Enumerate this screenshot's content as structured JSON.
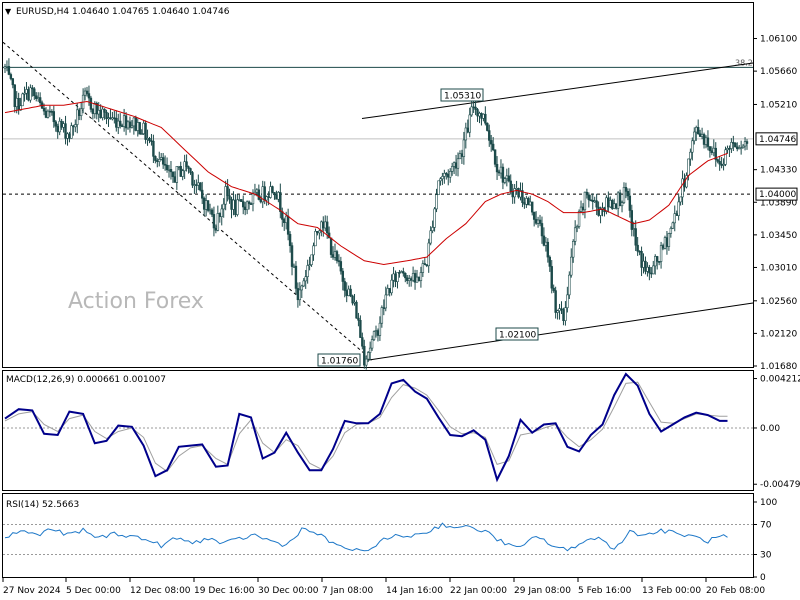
{
  "header": {
    "arrow": "▼",
    "title": "EURUSD,H4  1.04640 1.04765 1.04640 1.04746"
  },
  "watermark": "Action Forex",
  "colors": {
    "candle": "#1c4a4a",
    "ma": "#cc0000",
    "macd": "#00008b",
    "signal": "#a0a0a0",
    "rsi": "#1e78c8",
    "grid_dash": "#9a9a9a"
  },
  "chart_data": [
    {
      "type": "candlestick",
      "symbol": "EURUSD",
      "timeframe": "H4",
      "ylim": [
        1.0168,
        1.0635
      ],
      "y_ticks": [
        "1.06100",
        "1.05660",
        "1.05210",
        "1.04330",
        "1.03890",
        "1.03450",
        "1.03010",
        "1.02560",
        "1.02120",
        "1.01680"
      ],
      "last_price": "1.04746",
      "level_tag": "1.04000",
      "fib_label": "38.2",
      "fib_level": 1.0571,
      "annotations": [
        {
          "label": "1.05310",
          "value": 1.0531
        },
        {
          "label": "1.02100",
          "value": 1.021
        },
        {
          "label": "1.01760",
          "value": 1.0176
        }
      ],
      "x_ticks": [
        "27 Nov 2024",
        "5 Dec 00:00",
        "12 Dec 08:00",
        "19 Dec 16:00",
        "30 Dec 00:00",
        "7 Jan 08:00",
        "14 Jan 16:00",
        "22 Jan 00:00",
        "29 Jan 08:00",
        "5 Feb 16:00",
        "13 Feb 00:00",
        "20 Feb 08:00"
      ],
      "close_path": [
        [
          0,
          1.057
        ],
        [
          6,
          1.052
        ],
        [
          13,
          1.054
        ],
        [
          20,
          1.051
        ],
        [
          25,
          1.05
        ],
        [
          33,
          1.048
        ],
        [
          41,
          1.053
        ],
        [
          48,
          1.051
        ],
        [
          56,
          1.05
        ],
        [
          62,
          1.05
        ],
        [
          70,
          1.049
        ],
        [
          78,
          1.045
        ],
        [
          85,
          1.042
        ],
        [
          93,
          1.044
        ],
        [
          100,
          1.04
        ],
        [
          108,
          1.036
        ],
        [
          113,
          1.04
        ],
        [
          118,
          1.038
        ],
        [
          125,
          1.039
        ],
        [
          132,
          1.04
        ],
        [
          138,
          1.041
        ],
        [
          144,
          1.036
        ],
        [
          150,
          1.026
        ],
        [
          156,
          1.031
        ],
        [
          162,
          1.037
        ],
        [
          168,
          1.032
        ],
        [
          174,
          1.028
        ],
        [
          180,
          1.024
        ],
        [
          184,
          1.018
        ],
        [
          190,
          1.021
        ],
        [
          196,
          1.027
        ],
        [
          203,
          1.03
        ],
        [
          210,
          1.028
        ],
        [
          216,
          1.031
        ],
        [
          222,
          1.042
        ],
        [
          228,
          1.043
        ],
        [
          234,
          1.046
        ],
        [
          240,
          1.052
        ],
        [
          246,
          1.05
        ],
        [
          252,
          1.044
        ],
        [
          258,
          1.041
        ],
        [
          264,
          1.04
        ],
        [
          270,
          1.038
        ],
        [
          276,
          1.034
        ],
        [
          282,
          1.025
        ],
        [
          286,
          1.023
        ],
        [
          292,
          1.035
        ],
        [
          298,
          1.04
        ],
        [
          304,
          1.038
        ],
        [
          312,
          1.039
        ],
        [
          318,
          1.04
        ],
        [
          324,
          1.032
        ],
        [
          330,
          1.029
        ],
        [
          336,
          1.032
        ],
        [
          342,
          1.036
        ],
        [
          348,
          1.042
        ],
        [
          354,
          1.049
        ],
        [
          360,
          1.047
        ],
        [
          366,
          1.044
        ],
        [
          372,
          1.047
        ],
        [
          380,
          1.047
        ]
      ],
      "ma_path": [
        [
          0,
          1.051
        ],
        [
          10,
          1.0515
        ],
        [
          20,
          1.052
        ],
        [
          30,
          1.052
        ],
        [
          42,
          1.0525
        ],
        [
          54,
          1.0515
        ],
        [
          66,
          1.0505
        ],
        [
          80,
          1.049
        ],
        [
          92,
          1.046
        ],
        [
          104,
          1.043
        ],
        [
          116,
          1.041
        ],
        [
          128,
          1.04
        ],
        [
          140,
          1.038
        ],
        [
          150,
          1.036
        ],
        [
          160,
          1.0355
        ],
        [
          172,
          1.033
        ],
        [
          184,
          1.031
        ],
        [
          194,
          1.0305
        ],
        [
          206,
          1.031
        ],
        [
          216,
          1.0315
        ],
        [
          226,
          1.034
        ],
        [
          236,
          1.036
        ],
        [
          246,
          1.039
        ],
        [
          254,
          1.04
        ],
        [
          262,
          1.0405
        ],
        [
          270,
          1.04
        ],
        [
          278,
          1.039
        ],
        [
          286,
          1.0375
        ],
        [
          296,
          1.0375
        ],
        [
          306,
          1.038
        ],
        [
          314,
          1.037
        ],
        [
          322,
          1.036
        ],
        [
          330,
          1.0365
        ],
        [
          340,
          1.0385
        ],
        [
          350,
          1.0425
        ],
        [
          360,
          1.0445
        ],
        [
          370,
          1.0455
        ]
      ]
    },
    {
      "type": "line",
      "indicator": "MACD",
      "label": "MACD(12,26,9) 0.000661 0.001007",
      "ylim": [
        -0.0052,
        0.0046
      ],
      "y_ticks": [
        "0.004212",
        "0.00",
        "-0.004794"
      ],
      "zero": 0,
      "x": [
        0,
        7,
        14,
        20,
        27,
        33,
        40,
        46,
        52,
        58,
        65,
        71,
        77,
        83,
        89,
        95,
        101,
        108,
        114,
        120,
        126,
        132,
        138,
        144,
        150,
        156,
        162,
        168,
        174,
        180,
        186,
        192,
        198,
        204,
        210,
        216,
        222,
        228,
        234,
        240,
        246,
        252,
        258,
        264,
        270,
        276,
        282,
        288,
        294,
        300,
        306,
        312,
        318,
        324,
        330,
        336,
        342,
        348,
        354,
        360,
        366,
        370
      ],
      "macd": [
        0.0008,
        0.0016,
        0.0015,
        -0.0005,
        -0.0006,
        0.0014,
        0.0012,
        -0.0013,
        -0.0011,
        0.0002,
        0.0001,
        -0.0015,
        -0.0041,
        -0.0036,
        -0.0016,
        -0.0015,
        -0.0014,
        -0.0033,
        -0.0032,
        0.0012,
        0.0009,
        -0.0026,
        -0.0021,
        -0.0004,
        -0.0021,
        -0.0036,
        -0.0036,
        -0.0018,
        0.0006,
        0.0004,
        0.0004,
        0.0012,
        0.0038,
        0.0041,
        0.0031,
        0.0025,
        0.0009,
        -0.0006,
        -0.0007,
        -0.0002,
        -0.001,
        -0.0044,
        -0.0024,
        0.0007,
        -0.0004,
        0.0003,
        0.0004,
        -0.0016,
        -0.002,
        -0.0006,
        0.0003,
        0.0028,
        0.0046,
        0.0036,
        0.0012,
        -0.0003,
        0.0003,
        0.0009,
        0.0013,
        0.0011,
        0.0006,
        0.0006
      ],
      "signal": [
        0.0006,
        0.0012,
        0.0014,
        0.0003,
        -0.0003,
        0.0008,
        0.0011,
        -0.0003,
        -0.0009,
        -0.0003,
        0.0,
        -0.0008,
        -0.003,
        -0.0037,
        -0.0024,
        -0.0017,
        -0.0015,
        -0.0026,
        -0.0031,
        -0.0005,
        0.0007,
        -0.0013,
        -0.0021,
        -0.001,
        -0.0015,
        -0.003,
        -0.0035,
        -0.0024,
        -0.0004,
        0.0003,
        0.0004,
        0.0009,
        0.0026,
        0.0037,
        0.0034,
        0.0028,
        0.0015,
        0.0001,
        -0.0005,
        -0.0004,
        -0.0008,
        -0.0031,
        -0.0028,
        -0.0006,
        -0.0004,
        0.0,
        0.0003,
        -0.0008,
        -0.0016,
        -0.001,
        -0.0001,
        0.0018,
        0.0038,
        0.0039,
        0.0022,
        0.0005,
        0.0004,
        0.0008,
        0.0012,
        0.0011,
        0.001,
        0.001
      ]
    },
    {
      "type": "line",
      "indicator": "RSI",
      "label": "RSI(14) 52.5663",
      "ylim": [
        0,
        100
      ],
      "y_ticks": [
        "100",
        "70",
        "30",
        "0"
      ],
      "levels": [
        70,
        30
      ],
      "x": [
        0,
        8,
        16,
        24,
        32,
        40,
        48,
        56,
        64,
        72,
        80,
        88,
        96,
        104,
        112,
        120,
        128,
        136,
        144,
        152,
        160,
        168,
        176,
        184,
        192,
        200,
        208,
        216,
        224,
        232,
        240,
        248,
        256,
        264,
        272,
        280,
        288,
        296,
        304,
        312,
        320,
        328,
        336,
        344,
        352,
        360,
        368,
        370
      ],
      "rsi": [
        52,
        62,
        56,
        64,
        56,
        62,
        52,
        58,
        55,
        50,
        42,
        52,
        45,
        52,
        44,
        51,
        56,
        48,
        42,
        64,
        58,
        44,
        38,
        32,
        48,
        54,
        55,
        60,
        70,
        66,
        66,
        58,
        44,
        38,
        56,
        42,
        35,
        48,
        52,
        38,
        60,
        56,
        62,
        58,
        54,
        48,
        55,
        52
      ]
    }
  ]
}
